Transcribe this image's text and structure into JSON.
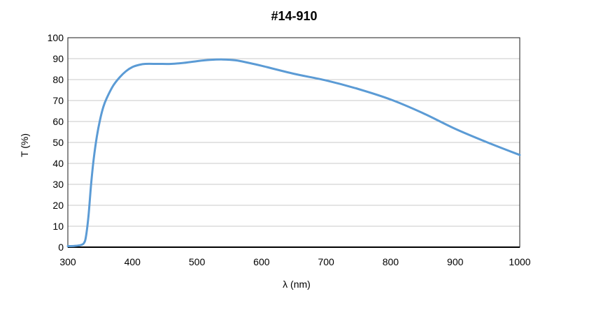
{
  "chart_data": {
    "type": "line",
    "title": "#14-910",
    "xlabel": "λ (nm)",
    "ylabel": "T (%)",
    "xlim": [
      300,
      1000
    ],
    "ylim": [
      0,
      100
    ],
    "x_ticks": [
      300,
      400,
      500,
      600,
      700,
      800,
      900,
      1000
    ],
    "y_ticks": [
      0,
      10,
      20,
      30,
      40,
      50,
      60,
      70,
      80,
      90,
      100
    ],
    "grid": true,
    "series": [
      {
        "color": "#5b9bd5",
        "x": [
          300,
          310,
          320,
          325,
          328,
          332,
          336,
          340,
          345,
          350,
          355,
          360,
          370,
          380,
          390,
          400,
          410,
          420,
          440,
          460,
          480,
          500,
          520,
          540,
          560,
          580,
          600,
          650,
          700,
          750,
          800,
          850,
          900,
          950,
          1000
        ],
        "y": [
          0.5,
          0.6,
          1.0,
          2.0,
          5,
          15,
          30,
          42,
          53,
          61,
          67,
          71,
          77,
          81,
          84,
          86,
          87,
          87.5,
          87.5,
          87.5,
          88,
          88.8,
          89.4,
          89.6,
          89.2,
          88,
          86.6,
          82.8,
          79.6,
          75.5,
          70.5,
          64,
          56.5,
          50,
          44
        ]
      }
    ]
  }
}
